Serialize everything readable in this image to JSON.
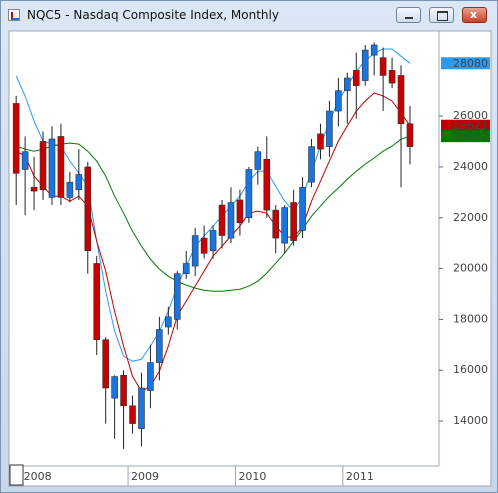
{
  "chart_data": {
    "type": "candlestick",
    "title": "NQC5 - Nasdaq Composite Index, Monthly",
    "categories": [
      null,
      "2008",
      null,
      null,
      null,
      null,
      null,
      null,
      null,
      null,
      null,
      null,
      null,
      "2009",
      null,
      null,
      null,
      null,
      null,
      null,
      null,
      null,
      null,
      null,
      null,
      "2010",
      null,
      null,
      null,
      null,
      null,
      null,
      null,
      null,
      null,
      null,
      null,
      "2011",
      null,
      null,
      null,
      null,
      null,
      null,
      null
    ],
    "open": [
      26500,
      23900,
      23200,
      25000,
      22800,
      25200,
      22800,
      23100,
      24000,
      20200,
      17200,
      14900,
      15800,
      14600,
      13700,
      15200,
      16300,
      17700,
      18000,
      19800,
      20100,
      21200,
      20700,
      22500,
      21200,
      22700,
      22000,
      23900,
      24300,
      22300,
      21000,
      22600,
      21500,
      23400,
      25300,
      24800,
      26200,
      27000,
      27800,
      27400,
      28400,
      28300,
      27800,
      27600,
      25700
    ],
    "high": [
      26800,
      25200,
      24400,
      25400,
      25600,
      25700,
      23800,
      24700,
      24200,
      20500,
      17300,
      15800,
      16000,
      15000,
      15900,
      17000,
      18100,
      18500,
      19900,
      20700,
      21600,
      21700,
      21700,
      22700,
      23200,
      23100,
      24000,
      24800,
      25200,
      22500,
      22500,
      23100,
      23600,
      25100,
      25700,
      26600,
      27500,
      27700,
      28500,
      28800,
      28900,
      28700,
      28300,
      28000,
      26400
    ],
    "low": [
      22500,
      22100,
      22300,
      22700,
      22500,
      22500,
      22600,
      22700,
      19800,
      16600,
      13900,
      13300,
      12900,
      13500,
      13000,
      14500,
      15600,
      17400,
      17600,
      19600,
      19700,
      20400,
      20400,
      20800,
      21000,
      21300,
      21800,
      23300,
      22000,
      20600,
      20600,
      20900,
      21200,
      23200,
      24300,
      24400,
      25600,
      25700,
      25900,
      27200,
      27600,
      26200,
      27100,
      23200,
      24100
    ],
    "close": [
      23750,
      24600,
      23050,
      23100,
      25100,
      22800,
      23400,
      23700,
      20700,
      17200,
      15300,
      15750,
      14600,
      13900,
      15300,
      16300,
      17600,
      18100,
      19800,
      20200,
      21300,
      20600,
      21500,
      21300,
      22600,
      21800,
      23900,
      24600,
      22300,
      21200,
      22400,
      21100,
      23200,
      24800,
      24700,
      26200,
      27000,
      27500,
      27200,
      28600,
      28800,
      27600,
      27300,
      25700,
      24800
    ],
    "up_color": "#1a74e0",
    "down_color": "#c80000",
    "wick_color": "#222222",
    "series": [
      {
        "color": "#2a9af0",
        "values": [
          27580,
          26790,
          25800,
          25020,
          24900,
          24820,
          24230,
          23760,
          23240,
          21080,
          19110,
          17540,
          16550,
          16350,
          16430,
          16950,
          17540,
          18320,
          19310,
          20090,
          20880,
          21280,
          21670,
          22060,
          22460,
          22850,
          23440,
          23830,
          23830,
          23240,
          22650,
          22260,
          22850,
          23830,
          24820,
          25800,
          26590,
          27180,
          27770,
          28170,
          28480,
          28640,
          28640,
          28360,
          28080
        ]
      },
      {
        "color": "#c00000",
        "values": [
          24620,
          24430,
          23640,
          23240,
          22850,
          22850,
          22650,
          22850,
          22460,
          21080,
          19900,
          18320,
          16950,
          15760,
          15170,
          15370,
          15960,
          16950,
          18130,
          18720,
          19310,
          19900,
          20490,
          20880,
          21280,
          21670,
          22180,
          22260,
          22180,
          21670,
          21280,
          21200,
          21670,
          22650,
          23440,
          24230,
          25020,
          25610,
          26200,
          26590,
          26910,
          26790,
          26590,
          26120,
          25621
        ]
      },
      {
        "color": "#007a00",
        "values": [
          24820,
          24700,
          24620,
          24700,
          24820,
          24900,
          24940,
          24900,
          24620,
          24230,
          23640,
          22850,
          22180,
          21470,
          20880,
          20370,
          19980,
          19700,
          19500,
          19350,
          19230,
          19150,
          19110,
          19110,
          19150,
          19190,
          19310,
          19500,
          19820,
          20210,
          20610,
          21080,
          21550,
          22060,
          22460,
          22850,
          23170,
          23520,
          23830,
          24110,
          24350,
          24620,
          24820,
          25090,
          25212
        ]
      }
    ],
    "ylim": [
      12230,
      29350
    ],
    "yticks": [
      14000,
      16000,
      18000,
      20000,
      22000,
      24000,
      26000
    ]
  }
}
